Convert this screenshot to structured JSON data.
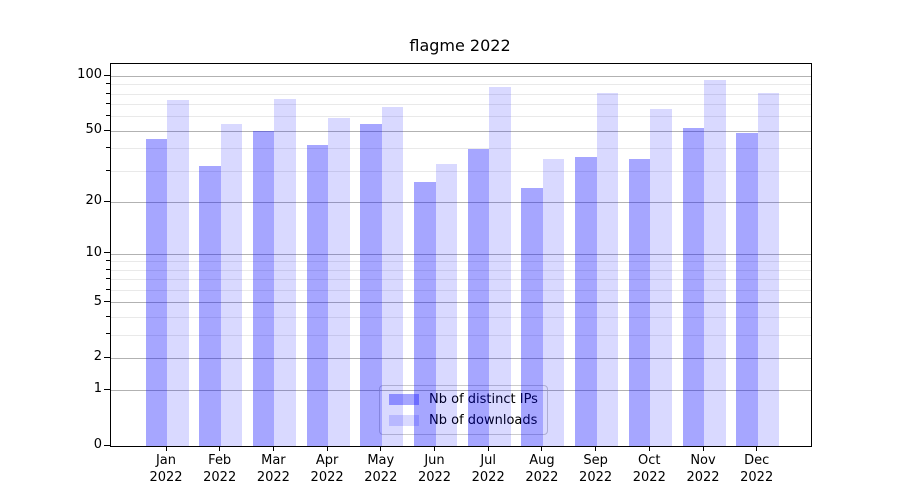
{
  "title": "flagme 2022",
  "chart_data": {
    "type": "bar",
    "title": "flagme 2022",
    "categories": [
      "Jan",
      "Feb",
      "Mar",
      "Apr",
      "May",
      "Jun",
      "Jul",
      "Aug",
      "Sep",
      "Oct",
      "Nov",
      "Dec"
    ],
    "xtick_second_line": "2022",
    "series": [
      {
        "name": "Nb of distinct IPs",
        "color": "rgba(0,0,255,0.35)",
        "values": [
          45,
          32,
          50,
          42,
          55,
          26,
          40,
          24,
          36,
          35,
          52,
          49
        ]
      },
      {
        "name": "Nb of downloads",
        "color": "rgba(0,0,255,0.15)",
        "values": [
          74,
          55,
          75,
          59,
          68,
          33,
          88,
          35,
          81,
          66,
          96,
          81
        ]
      }
    ],
    "yscale": "log1p",
    "yticks": [
      0,
      1,
      2,
      5,
      10,
      20,
      50,
      100
    ],
    "yticks_minor": [
      3,
      4,
      6,
      7,
      8,
      9,
      30,
      40,
      60,
      70,
      80,
      90
    ],
    "ylim": [
      0,
      117
    ],
    "grid": true,
    "legend_position": "lower center"
  },
  "colors": {
    "major_grid": "#b2b2b2",
    "minor_grid": "#e9e9e9",
    "spine": "#000000",
    "legend_border": "#cccccc",
    "legend_bg": "rgba(255,255,255,0.8)"
  }
}
